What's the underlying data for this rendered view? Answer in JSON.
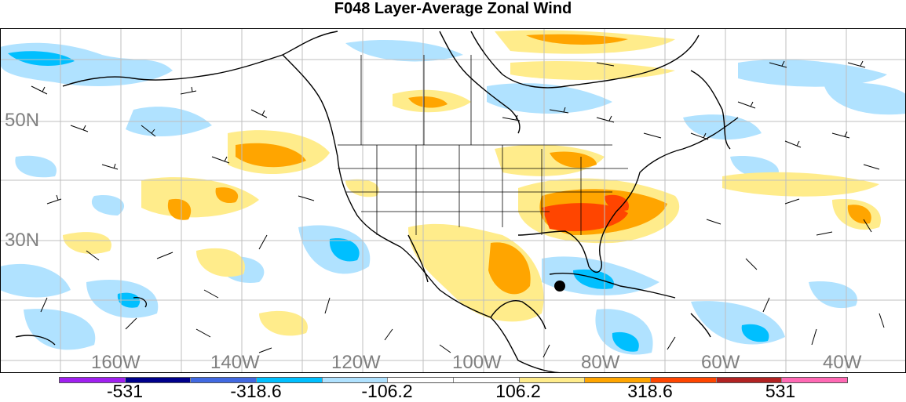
{
  "title": "F048 Layer-Average Zonal Wind",
  "lat_labels": [
    "50N",
    "30N"
  ],
  "lon_labels": [
    "160W",
    "140W",
    "120W",
    "100W",
    "80W",
    "60W",
    "40W"
  ],
  "colorbar": {
    "colors": [
      "#a020f0",
      "#00008b",
      "#4169e1",
      "#00bfff",
      "#b0e2ff",
      "#ffffff",
      "#ffffff",
      "#ffec8b",
      "#ffa500",
      "#ff4500",
      "#b22222",
      "#ff69b4"
    ],
    "labels": [
      "-531",
      "-318.6",
      "-106.2",
      "106.2",
      "318.6",
      "531"
    ]
  },
  "colors": {
    "negative_light": "#b0e2ff",
    "negative_mid": "#00bfff",
    "positive_light": "#ffec8b",
    "positive_mid": "#ffa500",
    "positive_strong": "#ff4500"
  }
}
